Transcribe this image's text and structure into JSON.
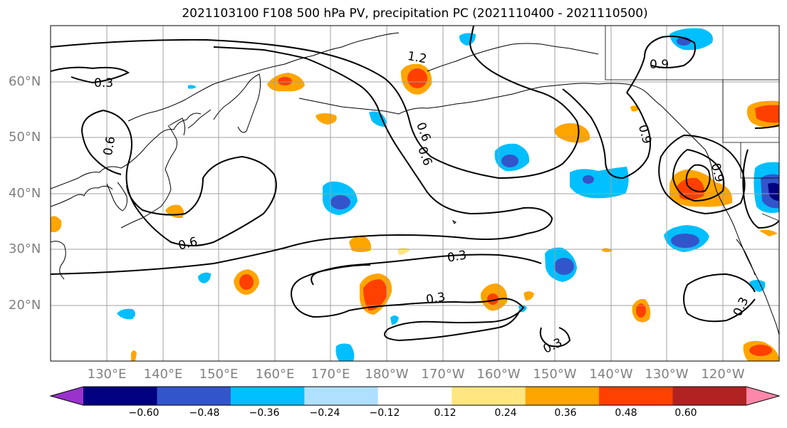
{
  "title": "2021103100 F108 500 hPa PV, precipitation PC (2021110400 - 2021110500)",
  "lat_labels": [
    "60°N",
    "50°N",
    "40°N",
    "30°N",
    "20°N"
  ],
  "lon_labels": [
    "130°E",
    "140°E",
    "150°E",
    "160°E",
    "170°E",
    "180°W",
    "170°W",
    "160°W",
    "150°W",
    "140°W",
    "130°W",
    "120°W"
  ],
  "contour_labels": [
    "1.2",
    "0.3",
    "0.9",
    "0.6",
    "0.6",
    "0.6",
    "0.9",
    "0.3",
    "0.3",
    "0.3",
    "0.3",
    "0.6",
    "0.9"
  ],
  "colorbar": {
    "ticks": [
      "−0.60",
      "−0.48",
      "−0.36",
      "−0.24",
      "−0.12",
      "0.12",
      "0.24",
      "0.36",
      "0.48",
      "0.60"
    ],
    "colors": [
      "#9933cc",
      "#000080",
      "#3355cc",
      "#00bfff",
      "#b0e0ff",
      "#ffffff",
      "#ffe680",
      "#ffa500",
      "#ff4000",
      "#b22222",
      "#ff88aa"
    ]
  }
}
